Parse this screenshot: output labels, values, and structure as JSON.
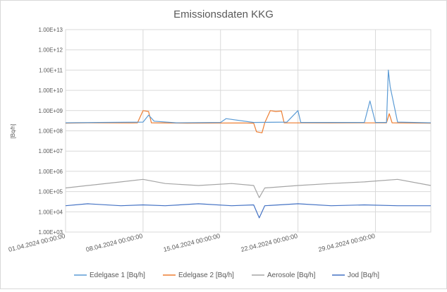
{
  "chart_data": {
    "type": "line",
    "title": "Emissionsdaten KKG",
    "ylabel": "[Bq/h]",
    "xlabel": "",
    "y_scale": "log",
    "ylim": [
      1000,
      10000000000000
    ],
    "xlim": [
      "01.04.2024 00:00:00",
      "04.05.2024 00:00:00"
    ],
    "y_ticks": [
      "1.00E+03",
      "1.00E+04",
      "1.00E+05",
      "1.00E+06",
      "1.00E+07",
      "1.00E+08",
      "1.00E+09",
      "1.00E+10",
      "1.00E+11",
      "1.00E+12",
      "1.00E+13"
    ],
    "x_ticks": [
      "01.04.2024 00:00:00",
      "08.04.2024 00:00:00",
      "15.04.2024 00:00:00",
      "22.04.2024 00:00:00",
      "29.04.2024 00:00:00"
    ],
    "grid": true,
    "legend_position": "bottom",
    "series": [
      {
        "name": "Edelgase 1 [Bq/h]",
        "color": "#5b9bd5",
        "x": [
          "01.04.2024 00:00:00",
          "04.04.2024 00:00:00",
          "08.04.2024 00:00:00",
          "08.04.2024 12:00:00",
          "09.04.2024 00:00:00",
          "11.04.2024 00:00:00",
          "15.04.2024 00:00:00",
          "15.04.2024 12:00:00",
          "18.04.2024 00:00:00",
          "21.04.2024 00:00:00",
          "22.04.2024 00:00:00",
          "22.04.2024 06:00:00",
          "25.04.2024 00:00:00",
          "28.04.2024 00:00:00",
          "28.04.2024 12:00:00",
          "29.04.2024 00:00:00",
          "30.04.2024 00:00:00",
          "30.04.2024 04:00:00",
          "30.04.2024 08:00:00",
          "01.05.2024 00:00:00",
          "04.05.2024 00:00:00"
        ],
        "values": [
          250000000,
          260000000,
          270000000,
          600000000,
          300000000,
          250000000,
          260000000,
          400000000,
          260000000,
          270000000,
          1000000000,
          260000000,
          260000000,
          260000000,
          3000000000,
          260000000,
          260000000,
          100000000000,
          15000000000,
          270000000,
          250000000
        ]
      },
      {
        "name": "Edelgase 2 [Bq/h]",
        "color": "#ed7d31",
        "x": [
          "01.04.2024 00:00:00",
          "03.04.2024 00:00:00",
          "07.04.2024 00:00:00",
          "07.04.2024 12:00:00",
          "08.04.2024 00:00:00",
          "08.04.2024 12:00:00",
          "08.04.2024 18:00:00",
          "12.04.2024 00:00:00",
          "17.04.2024 00:00:00",
          "18.04.2024 00:00:00",
          "18.04.2024 06:00:00",
          "18.04.2024 18:00:00",
          "19.04.2024 00:00:00",
          "19.04.2024 12:00:00",
          "20.04.2024 00:00:00",
          "20.04.2024 12:00:00",
          "20.04.2024 18:00:00",
          "25.04.2024 00:00:00",
          "30.04.2024 00:00:00",
          "30.04.2024 06:00:00",
          "30.04.2024 12:00:00",
          "04.05.2024 00:00:00"
        ],
        "values": [
          240000000,
          250000000,
          245000000,
          250000000,
          1000000000,
          900000000,
          250000000,
          240000000,
          245000000,
          240000000,
          90000000,
          80000000,
          250000000,
          1000000000,
          900000000,
          950000000,
          250000000,
          245000000,
          250000000,
          700000000,
          250000000,
          240000000
        ]
      },
      {
        "name": "Aerosole [Bq/h]",
        "color": "#a5a5a5",
        "x": [
          "01.04.2024 00:00:00",
          "03.04.2024 00:00:00",
          "06.04.2024 00:00:00",
          "08.04.2024 00:00:00",
          "10.04.2024 00:00:00",
          "13.04.2024 00:00:00",
          "16.04.2024 00:00:00",
          "18.04.2024 00:00:00",
          "18.04.2024 12:00:00",
          "19.04.2024 00:00:00",
          "22.04.2024 00:00:00",
          "25.04.2024 00:00:00",
          "28.04.2024 00:00:00",
          "01.05.2024 00:00:00",
          "04.05.2024 00:00:00"
        ],
        "values": [
          150000,
          200000,
          300000,
          400000,
          250000,
          200000,
          250000,
          200000,
          50000,
          150000,
          200000,
          250000,
          300000,
          400000,
          200000
        ]
      },
      {
        "name": "Jod [Bq/h]",
        "color": "#4472c4",
        "x": [
          "01.04.2024 00:00:00",
          "03.04.2024 00:00:00",
          "06.04.2024 00:00:00",
          "08.04.2024 00:00:00",
          "10.04.2024 00:00:00",
          "13.04.2024 00:00:00",
          "16.04.2024 00:00:00",
          "18.04.2024 00:00:00",
          "18.04.2024 12:00:00",
          "19.04.2024 00:00:00",
          "22.04.2024 00:00:00",
          "25.04.2024 00:00:00",
          "28.04.2024 00:00:00",
          "01.05.2024 00:00:00",
          "04.05.2024 00:00:00"
        ],
        "values": [
          20000,
          25000,
          20000,
          22000,
          20000,
          25000,
          20000,
          22000,
          5000,
          20000,
          25000,
          20000,
          22000,
          20000,
          20000
        ]
      }
    ]
  }
}
